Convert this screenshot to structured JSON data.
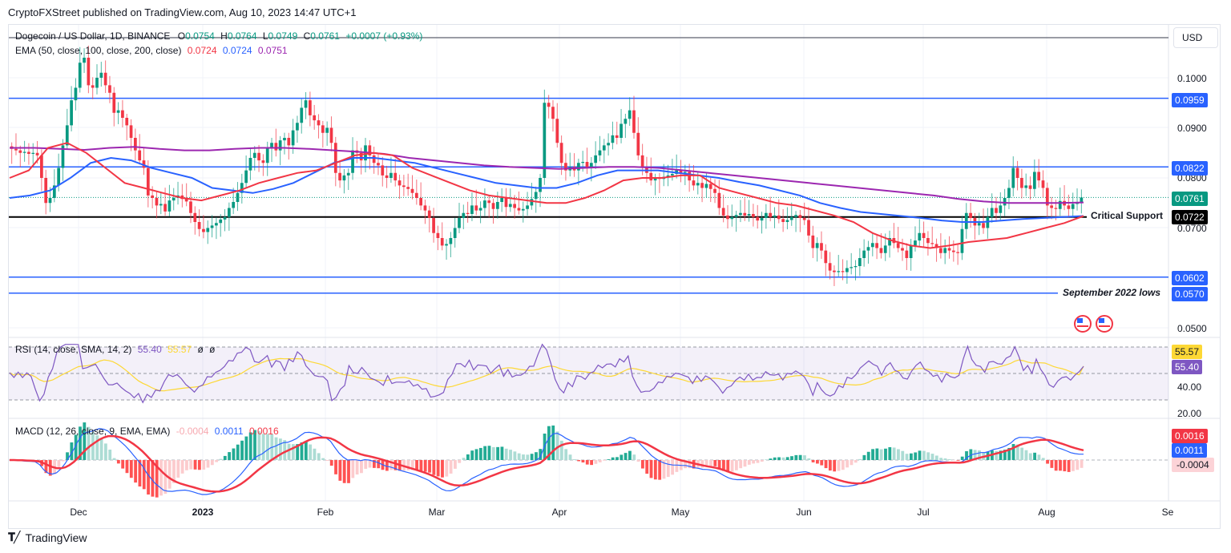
{
  "header": {
    "published": "CryptoFXStreet published on TradingView.com, Aug 10, 2023 14:47 UTC+1"
  },
  "legend": {
    "symbol": "Dogecoin / US Dollar, 1D, BINANCE",
    "open_label": "O",
    "open": "0.0754",
    "high_label": "H",
    "high": "0.0764",
    "low_label": "L",
    "low": "0.0749",
    "close_label": "C",
    "close": "0.0761",
    "change": "+0.0007 (+0.93%)",
    "ema_label": "EMA (50, close, 100, close, 200, close)",
    "ema50": "0.0724",
    "ema100": "0.0724",
    "ema200": "0.0751",
    "rsi_label": "RSI (14, close, SMA, 14, 2)",
    "rsi": "55.40",
    "rsi_sma": "55.57",
    "rsi_extra1": "ø",
    "rsi_extra2": "ø",
    "macd_label": "MACD (12, 26, close, 9, EMA, EMA)",
    "macd_hist": "-0.0004",
    "macd": "0.0011",
    "macd_signal": "0.0016"
  },
  "currency_button": "USD",
  "colors": {
    "up": "#089981",
    "down": "#f23645",
    "ema50": "#f23645",
    "ema100": "#2962ff",
    "ema200": "#9c27b0",
    "level": "#2962ff",
    "support": "#000000",
    "rsi": "#7e57c2",
    "rsi_sma": "#fdd835",
    "macd": "#2962ff",
    "signal": "#f23645"
  },
  "price_axis": {
    "ticks": [
      "0.1000",
      "0.0900",
      "0.0800",
      "0.0700",
      "0.0500"
    ]
  },
  "price_tags": {
    "r1": "0.0959",
    "r2": "0.0822",
    "last": "0.0761",
    "support": "0.0722",
    "s1": "0.0602",
    "s2": "0.0570"
  },
  "annotations": {
    "support": "Critical Support",
    "lows": "September 2022 lows"
  },
  "rsi_axis": {
    "sma_tag": "55.57",
    "rsi_tag": "55.40",
    "ticks": [
      "40.00",
      "20.00"
    ]
  },
  "macd_axis": {
    "signal_tag": "0.0016",
    "macd_tag": "0.0011",
    "hist_tag": "-0.0004"
  },
  "time_axis": [
    "Dec",
    "2023",
    "Feb",
    "Mar",
    "Apr",
    "May",
    "Jun",
    "Jul",
    "Aug",
    "Se"
  ],
  "footer": {
    "brand": "TradingView"
  },
  "chart_data": {
    "type": "candlestick",
    "title": "Dogecoin / US Dollar, 1D, BINANCE",
    "xlabel": "",
    "ylabel": "USD",
    "ylim": [
      0.045,
      0.112
    ],
    "x_range": [
      "2022-11-05",
      "2023-08-10"
    ],
    "horizontal_levels": [
      {
        "value": 0.0959,
        "color": "#2962ff",
        "label": ""
      },
      {
        "value": 0.0822,
        "color": "#2962ff",
        "label": ""
      },
      {
        "value": 0.0722,
        "color": "#000000",
        "label": "Critical Support"
      },
      {
        "value": 0.0602,
        "color": "#2962ff",
        "label": ""
      },
      {
        "value": 0.057,
        "color": "#2962ff",
        "label": "September 2022 lows"
      }
    ],
    "last_ohlc": {
      "open": 0.0754,
      "high": 0.0764,
      "low": 0.0749,
      "close": 0.0761
    },
    "ema": {
      "ema50": 0.0724,
      "ema100": 0.0724,
      "ema200": 0.0751
    },
    "close_path": [
      0.0858,
      0.0855,
      0.085,
      0.0852,
      0.0848,
      0.085,
      0.0845,
      0.08,
      0.075,
      0.076,
      0.0785,
      0.082,
      0.0865,
      0.0905,
      0.0955,
      0.098,
      0.103,
      0.104,
      0.0985,
      0.098,
      0.1,
      0.101,
      0.0985,
      0.097,
      0.093,
      0.0935,
      0.092,
      0.0905,
      0.088,
      0.0855,
      0.0835,
      0.082,
      0.0765,
      0.076,
      0.0745,
      0.0748,
      0.0733,
      0.0755,
      0.076,
      0.0765,
      0.0758,
      0.0753,
      0.073,
      0.0712,
      0.0698,
      0.0692,
      0.07,
      0.0705,
      0.071,
      0.0717,
      0.0722,
      0.074,
      0.0752,
      0.077,
      0.079,
      0.0815,
      0.084,
      0.085,
      0.0835,
      0.083,
      0.086,
      0.087,
      0.0855,
      0.0875,
      0.088,
      0.0865,
      0.0895,
      0.091,
      0.094,
      0.0955,
      0.0925,
      0.0915,
      0.0905,
      0.089,
      0.09,
      0.087,
      0.081,
      0.0795,
      0.0805,
      0.081,
      0.0855,
      0.085,
      0.0835,
      0.0865,
      0.0845,
      0.083,
      0.0825,
      0.0805,
      0.08,
      0.081,
      0.0795,
      0.0785,
      0.0782,
      0.0778,
      0.077,
      0.076,
      0.0745,
      0.0735,
      0.072,
      0.069,
      0.068,
      0.0665,
      0.0668,
      0.068,
      0.07,
      0.072,
      0.073,
      0.0728,
      0.0745,
      0.0735,
      0.074,
      0.0755,
      0.075,
      0.0738,
      0.0752,
      0.076,
      0.0742,
      0.0748,
      0.074,
      0.0735,
      0.0738,
      0.0745,
      0.0758,
      0.0772,
      0.08,
      0.095,
      0.0942,
      0.0918,
      0.087,
      0.083,
      0.0815,
      0.0822,
      0.0815,
      0.083,
      0.0832,
      0.082,
      0.083,
      0.0845,
      0.0855,
      0.0865,
      0.087,
      0.0885,
      0.088,
      0.0908,
      0.0918,
      0.0935,
      0.089,
      0.0845,
      0.0822,
      0.081,
      0.0795,
      0.08,
      0.0798,
      0.0802,
      0.0805,
      0.0808,
      0.0815,
      0.081,
      0.0812,
      0.0795,
      0.0785,
      0.079,
      0.078,
      0.0788,
      0.0778,
      0.077,
      0.074,
      0.0725,
      0.0718,
      0.0722,
      0.0726,
      0.073,
      0.0725,
      0.0728,
      0.0722,
      0.0715,
      0.072,
      0.073,
      0.0722,
      0.0725,
      0.0718,
      0.0712,
      0.0716,
      0.0722,
      0.0726,
      0.072,
      0.0716,
      0.0685,
      0.066,
      0.067,
      0.0655,
      0.063,
      0.0615,
      0.0612,
      0.0614,
      0.0612,
      0.062,
      0.0622,
      0.0624,
      0.064,
      0.0655,
      0.0662,
      0.067,
      0.066,
      0.065,
      0.0665,
      0.068,
      0.067,
      0.066,
      0.0655,
      0.064,
      0.0665,
      0.0675,
      0.069,
      0.068,
      0.067,
      0.0668,
      0.066,
      0.065,
      0.066,
      0.0655,
      0.0652,
      0.065,
      0.0698,
      0.073,
      0.072,
      0.0705,
      0.071,
      0.07,
      0.0722,
      0.074,
      0.073,
      0.0745,
      0.076,
      0.078,
      0.082,
      0.08,
      0.078,
      0.0785,
      0.0778,
      0.0812,
      0.0795,
      0.078,
      0.0745,
      0.074,
      0.0738,
      0.0754,
      0.0745,
      0.0738,
      0.0748,
      0.0752,
      0.0761
    ],
    "ema50_path": [
      0.08,
      0.0815,
      0.086,
      0.087,
      0.085,
      0.082,
      0.079,
      0.078,
      0.077,
      0.076,
      0.0755,
      0.0765,
      0.0775,
      0.079,
      0.08,
      0.081,
      0.0815,
      0.083,
      0.0845,
      0.085,
      0.0845,
      0.082,
      0.0805,
      0.079,
      0.0775,
      0.0765,
      0.076,
      0.0755,
      0.075,
      0.075,
      0.076,
      0.0775,
      0.0795,
      0.08,
      0.08,
      0.0805,
      0.0805,
      0.078,
      0.077,
      0.076,
      0.075,
      0.0745,
      0.0735,
      0.0725,
      0.0712,
      0.069,
      0.0675,
      0.0665,
      0.066,
      0.0665,
      0.0672,
      0.0676,
      0.068,
      0.069,
      0.07,
      0.071,
      0.0724
    ],
    "ema100_path": [
      0.076,
      0.0765,
      0.0775,
      0.08,
      0.083,
      0.084,
      0.0835,
      0.082,
      0.081,
      0.08,
      0.078,
      0.0775,
      0.077,
      0.0778,
      0.079,
      0.081,
      0.083,
      0.084,
      0.084,
      0.0835,
      0.083,
      0.082,
      0.081,
      0.08,
      0.079,
      0.0785,
      0.078,
      0.078,
      0.079,
      0.0805,
      0.0815,
      0.0815,
      0.0815,
      0.081,
      0.0805,
      0.08,
      0.0792,
      0.0785,
      0.0775,
      0.0765,
      0.075,
      0.074,
      0.0732,
      0.0728,
      0.0724,
      0.072,
      0.0715,
      0.0712,
      0.0712,
      0.0715,
      0.0718,
      0.072,
      0.0722,
      0.0724
    ],
    "ema200_path": [
      0.086,
      0.086,
      0.0858,
      0.0856,
      0.086,
      0.0862,
      0.0858,
      0.0855,
      0.0855,
      0.0858,
      0.086,
      0.086,
      0.0858,
      0.0855,
      0.0852,
      0.0848,
      0.084,
      0.0835,
      0.083,
      0.0825,
      0.0822,
      0.082,
      0.0818,
      0.082,
      0.0822,
      0.0822,
      0.082,
      0.0815,
      0.081,
      0.0805,
      0.08,
      0.0795,
      0.079,
      0.0785,
      0.078,
      0.0775,
      0.077,
      0.0765,
      0.0758,
      0.0753,
      0.075,
      0.075,
      0.075,
      0.0751
    ],
    "rsi": {
      "value": 55.4,
      "sma": 55.57,
      "bands": [
        70,
        50,
        30
      ],
      "ylim": [
        15,
        80
      ]
    },
    "macd": {
      "hist": -0.0004,
      "macd": 0.0011,
      "signal": 0.0016
    }
  }
}
